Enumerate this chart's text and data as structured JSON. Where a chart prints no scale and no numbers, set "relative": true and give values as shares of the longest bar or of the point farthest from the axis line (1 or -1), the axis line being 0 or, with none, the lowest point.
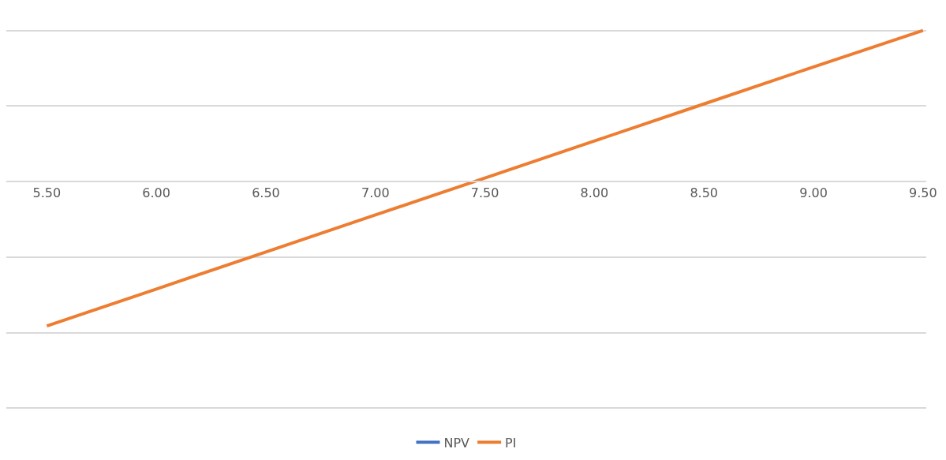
{
  "chart_data": {
    "type": "line",
    "relative": true,
    "categories": [
      "5.50",
      "6.00",
      "6.50",
      "7.00",
      "7.50",
      "8.00",
      "8.50",
      "9.00",
      "9.50"
    ],
    "series": [
      {
        "name": "NPV",
        "color": "#4472c4",
        "values": [
          null,
          null,
          null,
          null,
          null,
          null,
          null,
          null,
          null
        ]
      },
      {
        "name": "PI",
        "color": "#ed7d31",
        "values": [
          -0.956,
          -0.711,
          -0.466,
          -0.221,
          0.024,
          0.269,
          0.514,
          0.759,
          1.0
        ]
      }
    ],
    "grid": "y",
    "legend": "bottom",
    "marker": "none",
    "line_style": "solid"
  }
}
